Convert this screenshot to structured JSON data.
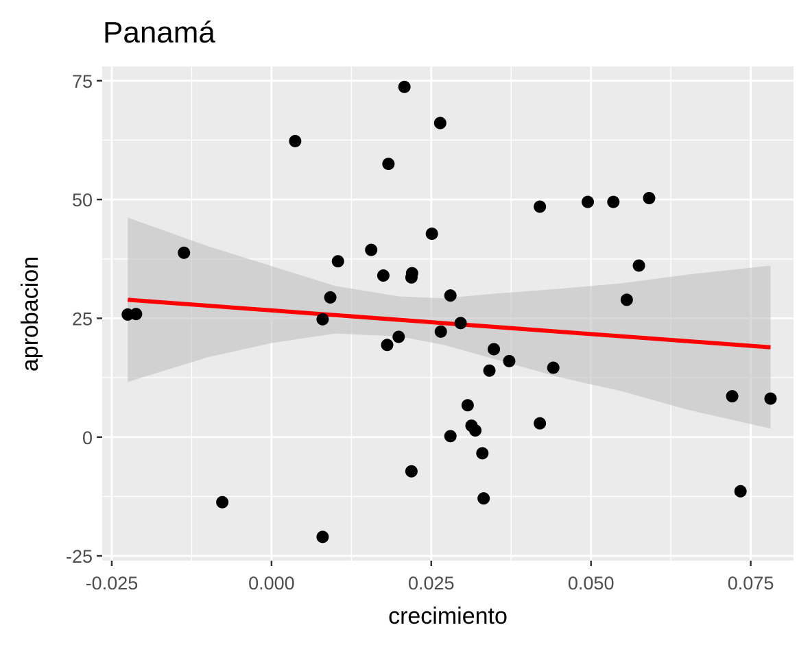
{
  "chart_data": {
    "type": "scatter",
    "title": "Panamá",
    "xlabel": "crecimiento",
    "ylabel": "aprobacion",
    "xlim": [
      -0.0265,
      0.0817
    ],
    "ylim": [
      -26,
      78
    ],
    "x_ticks": [
      -0.025,
      0.0,
      0.025,
      0.05,
      0.075
    ],
    "x_tick_labels": [
      "-0.025",
      "0.000",
      "0.025",
      "0.050",
      "0.075"
    ],
    "y_ticks": [
      -25,
      0,
      25,
      50,
      75
    ],
    "y_tick_labels": [
      "-25",
      "0",
      "25",
      "50",
      "75"
    ],
    "grid": true,
    "legend": "none",
    "colors": {
      "panel": "#ebebeb",
      "grid": "#ffffff",
      "points": "#000000",
      "fit_line": "#ff0000",
      "confidence_band": "#bfbfbf"
    },
    "points": [
      {
        "x": -0.0225,
        "y": 25.8
      },
      {
        "x": -0.0212,
        "y": 25.9
      },
      {
        "x": -0.0137,
        "y": 38.8
      },
      {
        "x": -0.0077,
        "y": -13.7
      },
      {
        "x": 0.0037,
        "y": 62.3
      },
      {
        "x": 0.008,
        "y": 24.8
      },
      {
        "x": 0.008,
        "y": -21.0
      },
      {
        "x": 0.0092,
        "y": 29.4
      },
      {
        "x": 0.0104,
        "y": 37.0
      },
      {
        "x": 0.0156,
        "y": 39.4
      },
      {
        "x": 0.0175,
        "y": 34.0
      },
      {
        "x": 0.0181,
        "y": 19.4
      },
      {
        "x": 0.0183,
        "y": 57.5
      },
      {
        "x": 0.0199,
        "y": 21.1
      },
      {
        "x": 0.0208,
        "y": 73.7
      },
      {
        "x": 0.0219,
        "y": 33.6
      },
      {
        "x": 0.022,
        "y": 34.5
      },
      {
        "x": 0.0219,
        "y": -7.2
      },
      {
        "x": 0.0251,
        "y": 42.8
      },
      {
        "x": 0.0264,
        "y": 66.1
      },
      {
        "x": 0.0265,
        "y": 22.2
      },
      {
        "x": 0.028,
        "y": 29.8
      },
      {
        "x": 0.028,
        "y": 0.2
      },
      {
        "x": 0.0296,
        "y": 24.0
      },
      {
        "x": 0.0307,
        "y": 6.7
      },
      {
        "x": 0.0313,
        "y": 2.4
      },
      {
        "x": 0.0319,
        "y": 1.4
      },
      {
        "x": 0.033,
        "y": -3.4
      },
      {
        "x": 0.0332,
        "y": -12.9
      },
      {
        "x": 0.0341,
        "y": 14.0
      },
      {
        "x": 0.0348,
        "y": 18.5
      },
      {
        "x": 0.0372,
        "y": 16.0
      },
      {
        "x": 0.042,
        "y": 48.5
      },
      {
        "x": 0.042,
        "y": 2.9
      },
      {
        "x": 0.0441,
        "y": 14.6
      },
      {
        "x": 0.0495,
        "y": 49.5
      },
      {
        "x": 0.0535,
        "y": 49.5
      },
      {
        "x": 0.0556,
        "y": 28.9
      },
      {
        "x": 0.0575,
        "y": 36.1
      },
      {
        "x": 0.0591,
        "y": 50.3
      },
      {
        "x": 0.0721,
        "y": 8.6
      },
      {
        "x": 0.0734,
        "y": -11.4
      },
      {
        "x": 0.0781,
        "y": 8.1
      }
    ],
    "fit_line": [
      {
        "x": -0.0225,
        "y": 28.9
      },
      {
        "x": 0.0781,
        "y": 18.9
      }
    ],
    "confidence_band": [
      {
        "x": -0.0225,
        "lower": 11.6,
        "upper": 46.2
      },
      {
        "x": -0.01,
        "lower": 16.8,
        "upper": 40.2
      },
      {
        "x": 0.0,
        "lower": 19.8,
        "upper": 36.0
      },
      {
        "x": 0.01,
        "lower": 21.8,
        "upper": 31.8
      },
      {
        "x": 0.02,
        "lower": 21.2,
        "upper": 29.6
      },
      {
        "x": 0.027,
        "lower": 19.4,
        "upper": 29.2
      },
      {
        "x": 0.035,
        "lower": 16.4,
        "upper": 30.2
      },
      {
        "x": 0.045,
        "lower": 12.6,
        "upper": 31.2
      },
      {
        "x": 0.055,
        "lower": 9.6,
        "upper": 32.4
      },
      {
        "x": 0.065,
        "lower": 5.8,
        "upper": 34.2
      },
      {
        "x": 0.0781,
        "lower": 1.8,
        "upper": 36.1
      }
    ]
  }
}
